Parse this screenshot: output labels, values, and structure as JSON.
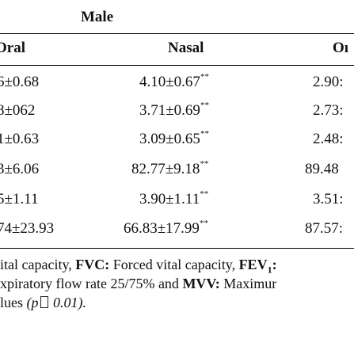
{
  "table": {
    "group_header": "Male",
    "columns": [
      "Oral",
      "Nasal",
      "Oı"
    ],
    "rows": [
      {
        "oral": "6±0.68",
        "nasal": "4.10±0.67",
        "sig": "**",
        "other": "2.90:"
      },
      {
        "oral": "8±062",
        "nasal": "3.71±0.69",
        "sig": "**",
        "other": "2.73:"
      },
      {
        "oral": "1±0.63",
        "nasal": "3.09±0.65",
        "sig": "**",
        "other": "2.48:"
      },
      {
        "oral": "3±6.06",
        "nasal": "82.77±9.18",
        "sig": "**",
        "other": "89.48"
      },
      {
        "oral": "5±1.11",
        "nasal": "3.90±1.11",
        "sig": "**",
        "other": "3.51:"
      },
      {
        "oral": "74±23.93",
        "nasal": "66.83±17.99",
        "sig": "**",
        "other": "87.57:"
      }
    ]
  },
  "footnote": {
    "line1_a": "ital capacity, ",
    "fvc": "FVC:",
    "line1_b": " Forced vital capacity, ",
    "fev": "FEV",
    "fev_sub": "1",
    "fev_colon": ":",
    "line2_a": "xpiratory flow rate 25/75% and ",
    "mvv": "MVV:",
    "line2_b": " Maximur",
    "line3_a": "lues ",
    "line3_p": "(p",
    "line3_b": " 0.01)."
  }
}
